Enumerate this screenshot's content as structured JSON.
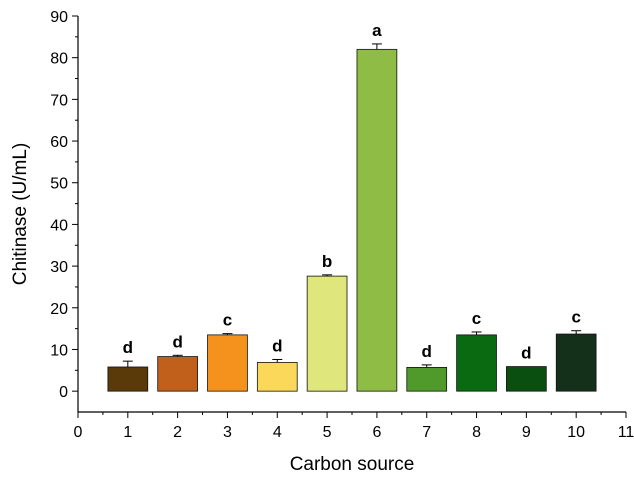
{
  "chart_data": {
    "type": "bar",
    "title": "",
    "xlabel": "Carbon source",
    "ylabel": "Chitinase (U/mL)",
    "xlim": [
      0,
      11
    ],
    "ylim": [
      -5,
      90
    ],
    "xticks": [
      "0",
      "1",
      "2",
      "3",
      "4",
      "5",
      "6",
      "7",
      "8",
      "9",
      "10",
      "11"
    ],
    "yticks": [
      "0",
      "10",
      "20",
      "30",
      "40",
      "50",
      "60",
      "70",
      "80",
      "90"
    ],
    "grid": false,
    "legend": "none",
    "bars": [
      {
        "x": 1,
        "value": 5.8,
        "error": 1.4,
        "label": "d",
        "color": "#5a3a08"
      },
      {
        "x": 2,
        "value": 8.3,
        "error": 0.3,
        "label": "d",
        "color": "#c1601a"
      },
      {
        "x": 3,
        "value": 13.5,
        "error": 0.3,
        "label": "c",
        "color": "#f5921e"
      },
      {
        "x": 4,
        "value": 6.9,
        "error": 0.7,
        "label": "d",
        "color": "#fbd85a"
      },
      {
        "x": 5,
        "value": 27.6,
        "error": 0.3,
        "label": "b",
        "color": "#dfe67c"
      },
      {
        "x": 6,
        "value": 82.0,
        "error": 1.3,
        "label": "a",
        "color": "#8fbc45"
      },
      {
        "x": 7,
        "value": 5.7,
        "error": 0.6,
        "label": "d",
        "color": "#4f9a2a"
      },
      {
        "x": 8,
        "value": 13.5,
        "error": 0.7,
        "label": "c",
        "color": "#0a6a12"
      },
      {
        "x": 9,
        "value": 5.9,
        "error": 0.0,
        "label": "d",
        "color": "#0b4f10"
      },
      {
        "x": 10,
        "value": 13.7,
        "error": 0.8,
        "label": "c",
        "color": "#14301a"
      }
    ]
  }
}
